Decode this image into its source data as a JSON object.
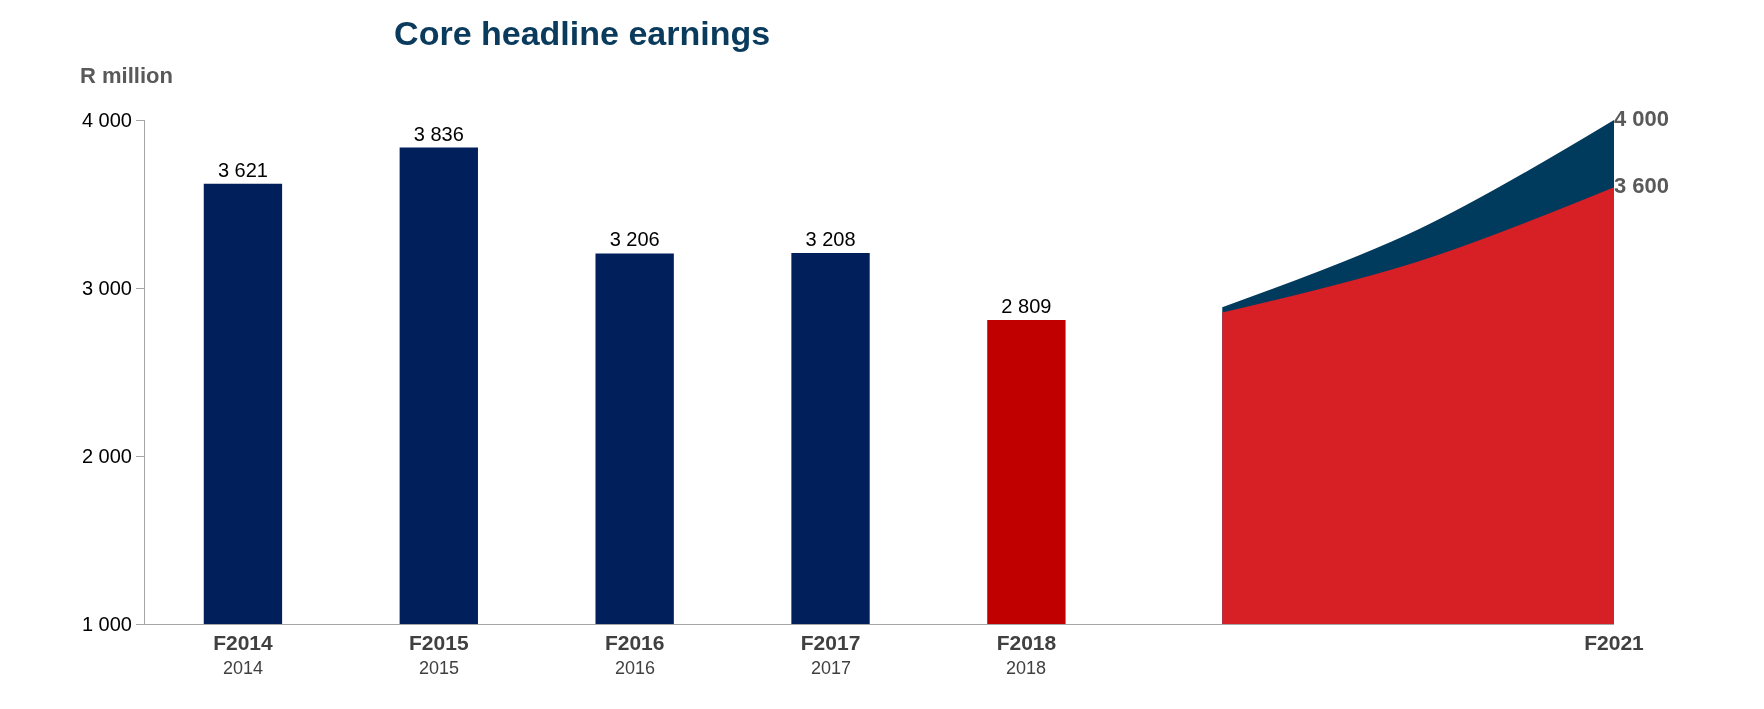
{
  "chart_data": {
    "type": "bar",
    "title": "Core headline earnings",
    "ylabel": "R million",
    "categories": [
      "F2014",
      "F2015",
      "F2016",
      "F2017",
      "F2018",
      null,
      null,
      "F2021"
    ],
    "ylim": [
      1000,
      4000
    ],
    "yticks": [
      {
        "value": 1000,
        "label": "1 000"
      },
      {
        "value": 2000,
        "label": "2 000"
      },
      {
        "value": 3000,
        "label": "3 000"
      },
      {
        "value": 4000,
        "label": "4 000"
      }
    ],
    "series": [
      {
        "values": [
          3621,
          3836,
          3206,
          3208,
          2809,
          null,
          null,
          null
        ],
        "colors": [
          "#001f5b",
          "#001f5b",
          "#001f5b",
          "#001f5b",
          "#c00000",
          null,
          null,
          null
        ],
        "value_labels": [
          "3 621",
          "3 836",
          "3 206",
          "3 208",
          "2 809",
          null,
          null,
          null
        ]
      },
      {
        "type": "area",
        "color": "#003a5d",
        "values": [
          null,
          null,
          null,
          null,
          null,
          2886,
          3348,
          4000
        ],
        "value_labels": [
          null,
          null,
          null,
          null,
          null,
          null,
          null,
          "4 000"
        ]
      },
      {
        "type": "area",
        "color": "#d71f26",
        "values": [
          null,
          null,
          null,
          null,
          null,
          2854,
          3158,
          3600
        ],
        "value_labels": [
          null,
          null,
          null,
          null,
          null,
          null,
          null,
          "3 600"
        ]
      }
    ],
    "annotations": [
      "2014",
      "2015",
      "2016",
      "2017",
      "2018"
    ],
    "legend": false
  }
}
